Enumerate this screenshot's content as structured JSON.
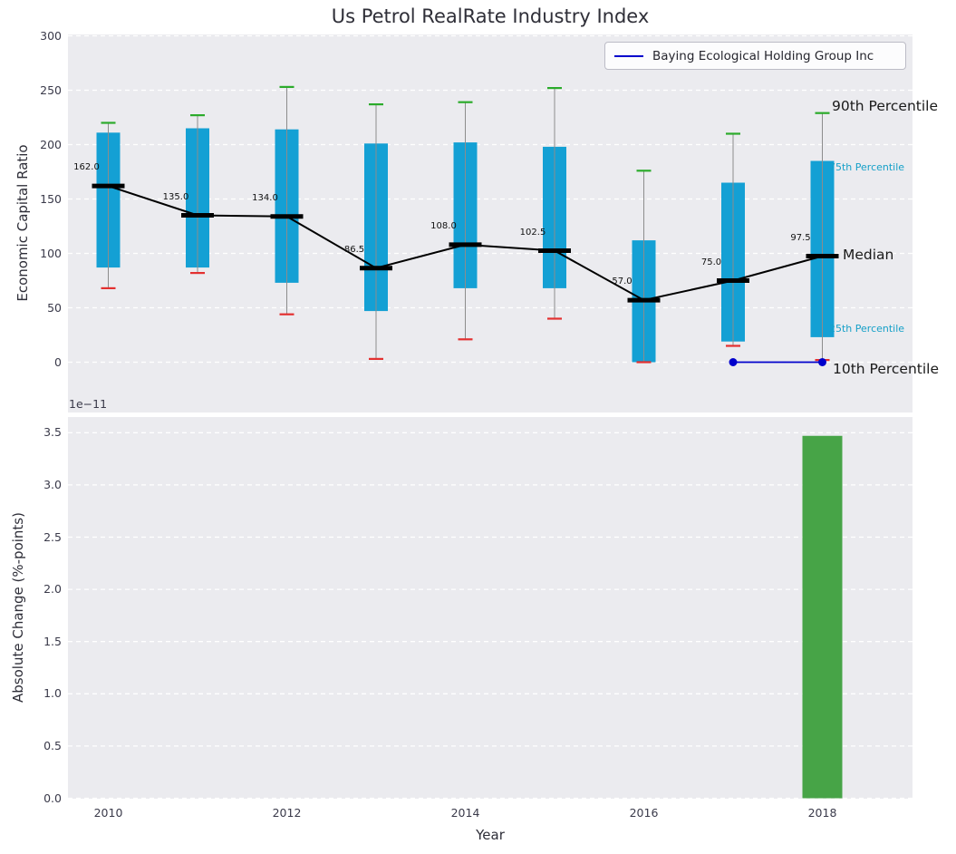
{
  "title": "Us Petrol RealRate Industry Index",
  "legend": {
    "label": "Baying Ecological Holding Group Inc"
  },
  "annotations": {
    "p90": "90th Percentile",
    "p75": "75th Percentile",
    "median": "Median",
    "p25": "25th Percentile",
    "p10": "10th Percentile"
  },
  "colors": {
    "box": "#14a0d4",
    "cap_high": "#2bab2b",
    "cap_low": "#e33030",
    "whisker": "#8c8c8c",
    "median": "#000000",
    "company_line": "#0000cc",
    "bar": "#47a447",
    "axes_bg": "#ebebef",
    "grid": "#ffffff",
    "annotation_cyan": "#16a0c8"
  },
  "chart_data": [
    {
      "type": "boxplot",
      "title": "Us Petrol RealRate Industry Index",
      "ylabel": "Economic Capital Ratio",
      "yticks": [
        0,
        50,
        100,
        150,
        200,
        250,
        300
      ],
      "ylim": [
        -46,
        302
      ],
      "grid": "horizontal-dashed",
      "legend_position": "upper right",
      "categories": [
        2010,
        2011,
        2012,
        2013,
        2014,
        2015,
        2016,
        2017,
        2018
      ],
      "series": [
        {
          "name": "90th percentile",
          "values": [
            220,
            227,
            253,
            237,
            239,
            252,
            176,
            210,
            229
          ]
        },
        {
          "name": "75th percentile",
          "values": [
            211,
            215,
            214,
            201,
            202,
            198,
            112,
            165,
            185
          ]
        },
        {
          "name": "median",
          "values": [
            162.0,
            135.0,
            134.0,
            86.5,
            108.0,
            102.5,
            57.0,
            75.0,
            97.5
          ]
        },
        {
          "name": "25th percentile",
          "values": [
            87,
            87,
            73,
            47,
            68,
            68,
            0,
            19,
            23
          ]
        },
        {
          "name": "10th percentile",
          "values": [
            68,
            82,
            44,
            3,
            21,
            40,
            0,
            15,
            2
          ]
        }
      ],
      "median_labels": [
        "162.0",
        "135.0",
        "134.0",
        "86.5",
        "108.0",
        "102.5",
        "57.0",
        "75.0",
        "97.5"
      ],
      "company_line": {
        "name": "Baying Ecological Holding Group Inc",
        "x": [
          2017,
          2018
        ],
        "y": [
          0,
          0
        ]
      }
    },
    {
      "type": "bar",
      "ylabel": "Absolute Change (%-points)",
      "xlabel": "Year",
      "offset_label": "1e−11",
      "yticks": [
        0,
        0.5,
        1,
        1.5,
        2,
        2.5,
        3,
        3.5
      ],
      "ylim": [
        0,
        3.65
      ],
      "xticks": [
        2010,
        2012,
        2014,
        2016,
        2018
      ],
      "grid": "horizontal-dashed",
      "categories": [
        2018
      ],
      "values": [
        3.47
      ],
      "values_scale": "1e-11"
    }
  ]
}
